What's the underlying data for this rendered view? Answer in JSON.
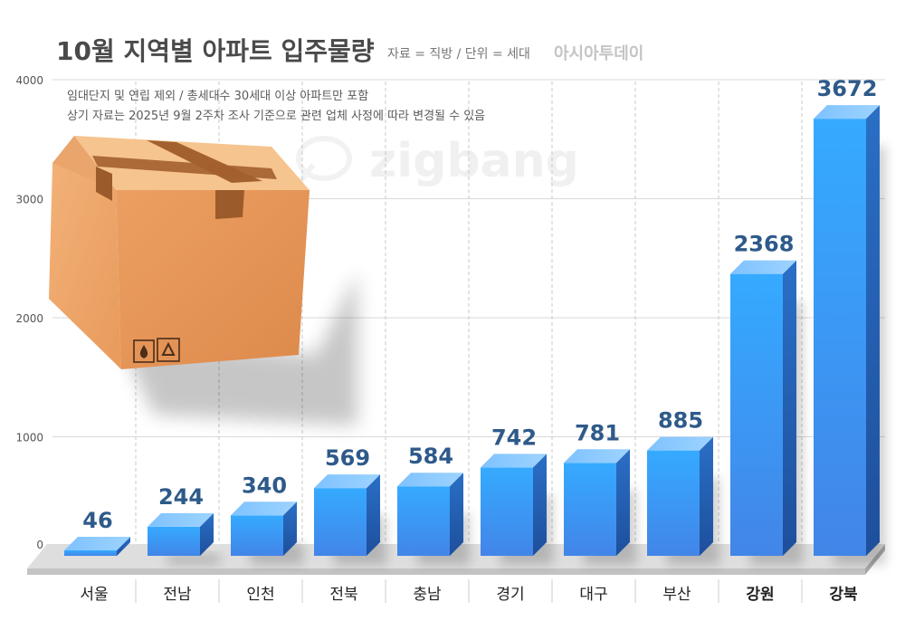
{
  "header": {
    "title": "10월 지역별 아파트 입주물량",
    "source": "자료 = 직방 / 단위 = 세대",
    "publisher": "아시아투데이"
  },
  "notes": [
    "임대단지 및 연립 제외 / 총세대수 30세대 이상 아파트만 포함",
    "상기 자료는 2025년 9월 2주차 조사 기준으로 관련 업체 사정에 따라 변경될 수 있음"
  ],
  "watermark": "zigbang",
  "box_icons": [
    "water-drop-icon",
    "recycle-icon"
  ],
  "colors": {
    "bar_front": "#3f92f0",
    "bar_top": "#8cc8ff",
    "bar_side": "#2456a8",
    "value_label": "#2e5a8a",
    "grid": "#cfcfcf",
    "box": "#f0a86a"
  },
  "chart_data": {
    "type": "bar",
    "categories": [
      "서울",
      "전남",
      "인천",
      "전북",
      "충남",
      "경기",
      "대구",
      "부산",
      "강원",
      "강북"
    ],
    "values": [
      46,
      244,
      340,
      569,
      584,
      742,
      781,
      885,
      2368,
      3672
    ],
    "bold_categories": [
      "강원",
      "강북"
    ],
    "yticks": [
      "0",
      "1000",
      "2000",
      "3000",
      "4000"
    ],
    "ylim": [
      0,
      4000
    ],
    "grid": true,
    "xlabel": "",
    "ylabel": ""
  }
}
